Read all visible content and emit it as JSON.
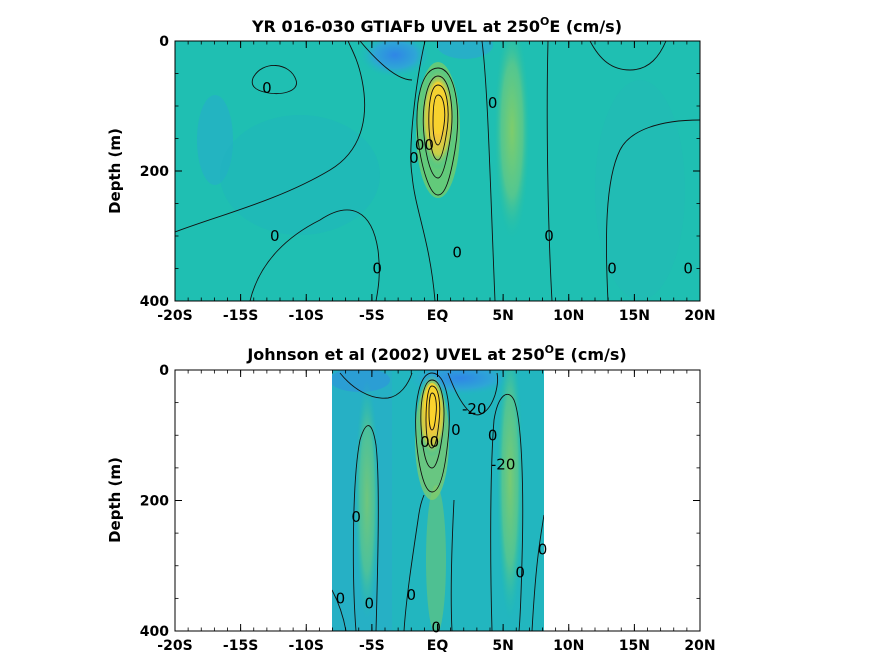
{
  "chart_data": [
    {
      "type": "heatmap",
      "title_main": "YR 016-030 GTIAFb UVEL at 250",
      "title_sup": "O",
      "title_end": "E (cm/s)",
      "ylabel": "Depth (m)",
      "xlim": [
        -20,
        20
      ],
      "ylim": [
        0,
        400
      ],
      "y_reversed": true,
      "x_ticks": [
        {
          "value": -20,
          "label": "-20S"
        },
        {
          "value": -15,
          "label": "-15S"
        },
        {
          "value": -10,
          "label": "-10S"
        },
        {
          "value": -5,
          "label": "-5S"
        },
        {
          "value": 0,
          "label": "EQ"
        },
        {
          "value": 5,
          "label": "5N"
        },
        {
          "value": 10,
          "label": "10N"
        },
        {
          "value": 15,
          "label": "15N"
        },
        {
          "value": 20,
          "label": "20N"
        }
      ],
      "y_ticks": [
        {
          "value": 0,
          "label": "0"
        },
        {
          "value": 200,
          "label": "200"
        },
        {
          "value": 400,
          "label": "400"
        }
      ],
      "data_xrange": [
        -20,
        20
      ],
      "background_level": "light-teal",
      "features": [
        {
          "x": 0.1,
          "depth": 110,
          "sx": 1.1,
          "sy": 60,
          "amp": 1.0,
          "kind": "core"
        },
        {
          "x": 5.2,
          "depth": 110,
          "sx": 1.2,
          "sy": 130,
          "amp": 0.22,
          "kind": "band"
        },
        {
          "x": -1.2,
          "depth": 10,
          "sx": 2.0,
          "sy": 30,
          "amp": -0.35,
          "kind": "dip"
        },
        {
          "x": -17,
          "depth": 160,
          "sx": 1.4,
          "sy": 50,
          "amp": -0.12,
          "kind": "dip"
        }
      ],
      "contour_labels": [
        {
          "text": "0",
          "x": -13.0,
          "y": 72
        },
        {
          "text": "0",
          "x": 4.2,
          "y": 95
        },
        {
          "text": "00",
          "x": -1.0,
          "y": 160
        },
        {
          "text": "0",
          "x": -1.8,
          "y": 180
        },
        {
          "text": "0",
          "x": -12.4,
          "y": 300
        },
        {
          "text": "0",
          "x": 1.5,
          "y": 325
        },
        {
          "text": "0",
          "x": 8.5,
          "y": 300
        },
        {
          "text": "0",
          "x": -4.6,
          "y": 350
        },
        {
          "text": "0",
          "x": 13.3,
          "y": 350
        },
        {
          "text": "0",
          "x": 19.1,
          "y": 350
        }
      ]
    },
    {
      "type": "heatmap",
      "title_main": "Johnson et al (2002) UVEL at 250",
      "title_sup": "O",
      "title_end": "E (cm/s)",
      "ylabel": "Depth (m)",
      "xlim": [
        -20,
        20
      ],
      "ylim": [
        0,
        400
      ],
      "y_reversed": true,
      "x_ticks": [
        {
          "value": -20,
          "label": "-20S"
        },
        {
          "value": -15,
          "label": "-15S"
        },
        {
          "value": -10,
          "label": "-10S"
        },
        {
          "value": -5,
          "label": "-5S"
        },
        {
          "value": 0,
          "label": "EQ"
        },
        {
          "value": 5,
          "label": "5N"
        },
        {
          "value": 10,
          "label": "10N"
        },
        {
          "value": 15,
          "label": "15N"
        },
        {
          "value": 20,
          "label": "20N"
        }
      ],
      "y_ticks": [
        {
          "value": 0,
          "label": "0"
        },
        {
          "value": 200,
          "label": "200"
        },
        {
          "value": 400,
          "label": "400"
        }
      ],
      "data_xrange": [
        -8,
        8.3
      ],
      "background_level": "mid-teal",
      "features": [
        {
          "x": -0.2,
          "depth": 75,
          "sx": 0.9,
          "sy": 55,
          "amp": 1.0,
          "kind": "core"
        },
        {
          "x": 5.0,
          "depth": 200,
          "sx": 0.9,
          "sy": 160,
          "amp": 0.25,
          "kind": "band"
        },
        {
          "x": -6.2,
          "depth": 200,
          "sx": 0.8,
          "sy": 120,
          "amp": 0.18,
          "kind": "band"
        },
        {
          "x": 1.8,
          "depth": 10,
          "sx": 1.2,
          "sy": 25,
          "amp": -0.45,
          "kind": "dip"
        }
      ],
      "contour_labels": [
        {
          "text": "-20",
          "x": 2.8,
          "y": 60
        },
        {
          "text": "00",
          "x": -0.6,
          "y": 110
        },
        {
          "text": "0",
          "x": 1.4,
          "y": 92
        },
        {
          "text": "0",
          "x": 4.2,
          "y": 100
        },
        {
          "text": "-20",
          "x": 5.0,
          "y": 145
        },
        {
          "text": "0",
          "x": -6.2,
          "y": 225
        },
        {
          "text": "0",
          "x": 8.0,
          "y": 275
        },
        {
          "text": "0",
          "x": 6.3,
          "y": 310
        },
        {
          "text": "0",
          "x": -7.4,
          "y": 350
        },
        {
          "text": "0",
          "x": -5.2,
          "y": 358
        },
        {
          "text": "0",
          "x": -2.0,
          "y": 345
        },
        {
          "text": "0",
          "x": -0.1,
          "y": 395
        }
      ]
    }
  ]
}
